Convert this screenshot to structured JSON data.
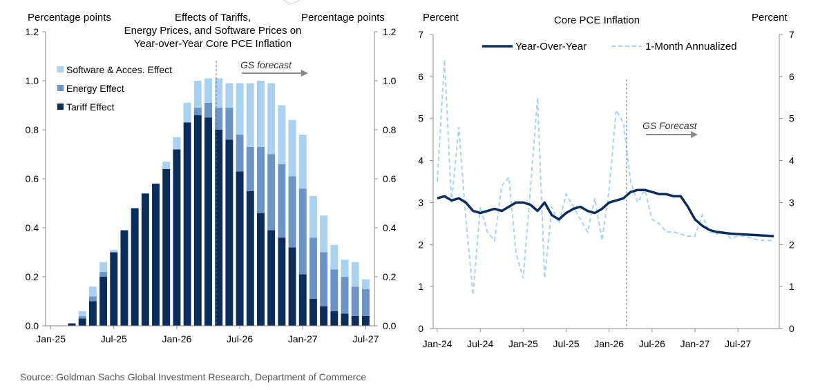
{
  "source": "Source: Goldman Sachs Global Investment Research, Department of Commerce",
  "colors": {
    "tariff": "#0b2d5b",
    "energy": "#6b94c8",
    "software": "#a9d2f0",
    "yoy": "#0b2d5b",
    "monthly": "#a9d2f0",
    "axis": "#8c8c8c"
  },
  "chart_data": [
    {
      "type": "bar",
      "stacked": true,
      "title_lines": [
        "Effects of Tariffs,",
        "Energy Prices, and Software Prices on",
        "Year-over-Year Core PCE Inflation"
      ],
      "ylabel_left": "Percentage points",
      "ylabel_right": "Percentage points",
      "ylim": [
        0,
        1.2
      ],
      "yticks": [
        "0.0",
        "0.2",
        "0.4",
        "0.6",
        "0.8",
        "1.0",
        "1.2"
      ],
      "x_tick_labels": [
        "Jan-25",
        "Jul-25",
        "Jan-26",
        "Jul-26",
        "Jan-27",
        "Jul-27"
      ],
      "forecast_label": "GS forecast",
      "grid": false,
      "legend_position": "top-left",
      "categories": [
        "Jan-25",
        "Feb-25",
        "Mar-25",
        "Apr-25",
        "May-25",
        "Jun-25",
        "Jul-25",
        "Aug-25",
        "Sep-25",
        "Oct-25",
        "Nov-25",
        "Dec-25",
        "Jan-26",
        "Feb-26",
        "Mar-26",
        "Apr-26",
        "May-26",
        "Jun-26",
        "Jul-26",
        "Aug-26",
        "Sep-26",
        "Oct-26",
        "Nov-26",
        "Dec-26",
        "Jan-27",
        "Feb-27",
        "Mar-27",
        "Apr-27",
        "May-27",
        "Jun-27",
        "Jul-27"
      ],
      "series": [
        {
          "name": "Tariff Effect",
          "values": [
            0.0,
            0.0,
            0.01,
            0.03,
            0.1,
            0.2,
            0.3,
            0.39,
            0.48,
            0.54,
            0.58,
            0.64,
            0.72,
            0.83,
            0.86,
            0.85,
            0.8,
            0.76,
            0.63,
            0.55,
            0.46,
            0.39,
            0.36,
            0.32,
            0.21,
            0.11,
            0.08,
            0.06,
            0.05,
            0.04,
            0.04
          ]
        },
        {
          "name": "Energy Effect",
          "values": [
            0.0,
            0.0,
            0.0,
            0.01,
            0.02,
            0.02,
            0.0,
            0.0,
            0.0,
            0.0,
            0.0,
            0.0,
            0.0,
            0.0,
            0.03,
            0.06,
            0.09,
            0.13,
            0.15,
            0.18,
            0.27,
            0.31,
            0.3,
            0.29,
            0.35,
            0.25,
            0.22,
            0.17,
            0.15,
            0.12,
            0.11
          ]
        },
        {
          "name": "Software & Acces. Effect",
          "values": [
            0.0,
            0.0,
            0.0,
            0.02,
            0.04,
            0.04,
            0.01,
            0.0,
            0.0,
            0.0,
            0.0,
            0.03,
            0.05,
            0.08,
            0.11,
            0.1,
            0.12,
            0.1,
            0.21,
            0.26,
            0.27,
            0.29,
            0.24,
            0.23,
            0.22,
            0.17,
            0.15,
            0.1,
            0.07,
            0.1,
            0.04
          ]
        }
      ]
    },
    {
      "type": "line",
      "title": "Core PCE Inflation",
      "ylabel_left": "Percent",
      "ylabel_right": "Percent",
      "ylim": [
        0,
        7
      ],
      "yticks": [
        "0",
        "1",
        "2",
        "3",
        "4",
        "5",
        "6",
        "7"
      ],
      "x_tick_labels": [
        "Jan-24",
        "Jul-24",
        "Jan-25",
        "Jul-25",
        "Jan-26",
        "Jul-26",
        "Jan-27",
        "Jul-27"
      ],
      "forecast_label": "GS Forecast",
      "grid": false,
      "legend_position": "top",
      "x": [
        "Jan-24",
        "Feb-24",
        "Mar-24",
        "Apr-24",
        "May-24",
        "Jun-24",
        "Jul-24",
        "Aug-24",
        "Sep-24",
        "Oct-24",
        "Nov-24",
        "Dec-24",
        "Jan-25",
        "Feb-25",
        "Mar-25",
        "Apr-25",
        "May-25",
        "Jun-25",
        "Jul-25",
        "Aug-25",
        "Sep-25",
        "Oct-25",
        "Nov-25",
        "Dec-25",
        "Jan-26",
        "Feb-26",
        "Mar-26",
        "Apr-26",
        "May-26",
        "Jun-26",
        "Jul-26",
        "Aug-26",
        "Sep-26",
        "Oct-26",
        "Nov-26",
        "Dec-26",
        "Jan-27",
        "Feb-27",
        "Mar-27",
        "Apr-27",
        "May-27",
        "Jun-27",
        "Jul-27",
        "Aug-27",
        "Sep-27",
        "Oct-27",
        "Nov-27",
        "Dec-27"
      ],
      "series": [
        {
          "name": "Year-Over-Year",
          "values": [
            3.1,
            3.15,
            3.05,
            3.1,
            3.0,
            2.8,
            2.75,
            2.8,
            2.85,
            2.8,
            2.9,
            3.0,
            3.0,
            2.95,
            2.8,
            3.0,
            2.7,
            2.6,
            2.75,
            2.85,
            2.9,
            2.8,
            2.75,
            2.85,
            3.0,
            3.05,
            3.1,
            3.25,
            3.3,
            3.3,
            3.25,
            3.2,
            3.2,
            3.15,
            3.15,
            2.9,
            2.6,
            2.45,
            2.35,
            2.3,
            2.28,
            2.26,
            2.25,
            2.24,
            2.23,
            2.22,
            2.21,
            2.2
          ]
        },
        {
          "name": "1-Month Annualized",
          "values": [
            3.5,
            6.4,
            3.0,
            4.8,
            2.6,
            0.8,
            2.9,
            2.3,
            2.1,
            3.4,
            3.6,
            1.8,
            1.2,
            3.3,
            5.5,
            1.2,
            2.9,
            2.5,
            3.2,
            2.9,
            2.6,
            2.3,
            3.1,
            2.1,
            3.3,
            5.2,
            4.9,
            3.5,
            3.0,
            3.3,
            2.6,
            2.5,
            2.3,
            2.3,
            2.25,
            2.2,
            2.2,
            2.7,
            2.3,
            2.25,
            2.3,
            2.15,
            2.2,
            2.2,
            2.15,
            2.1,
            2.1,
            2.1
          ]
        }
      ]
    }
  ]
}
